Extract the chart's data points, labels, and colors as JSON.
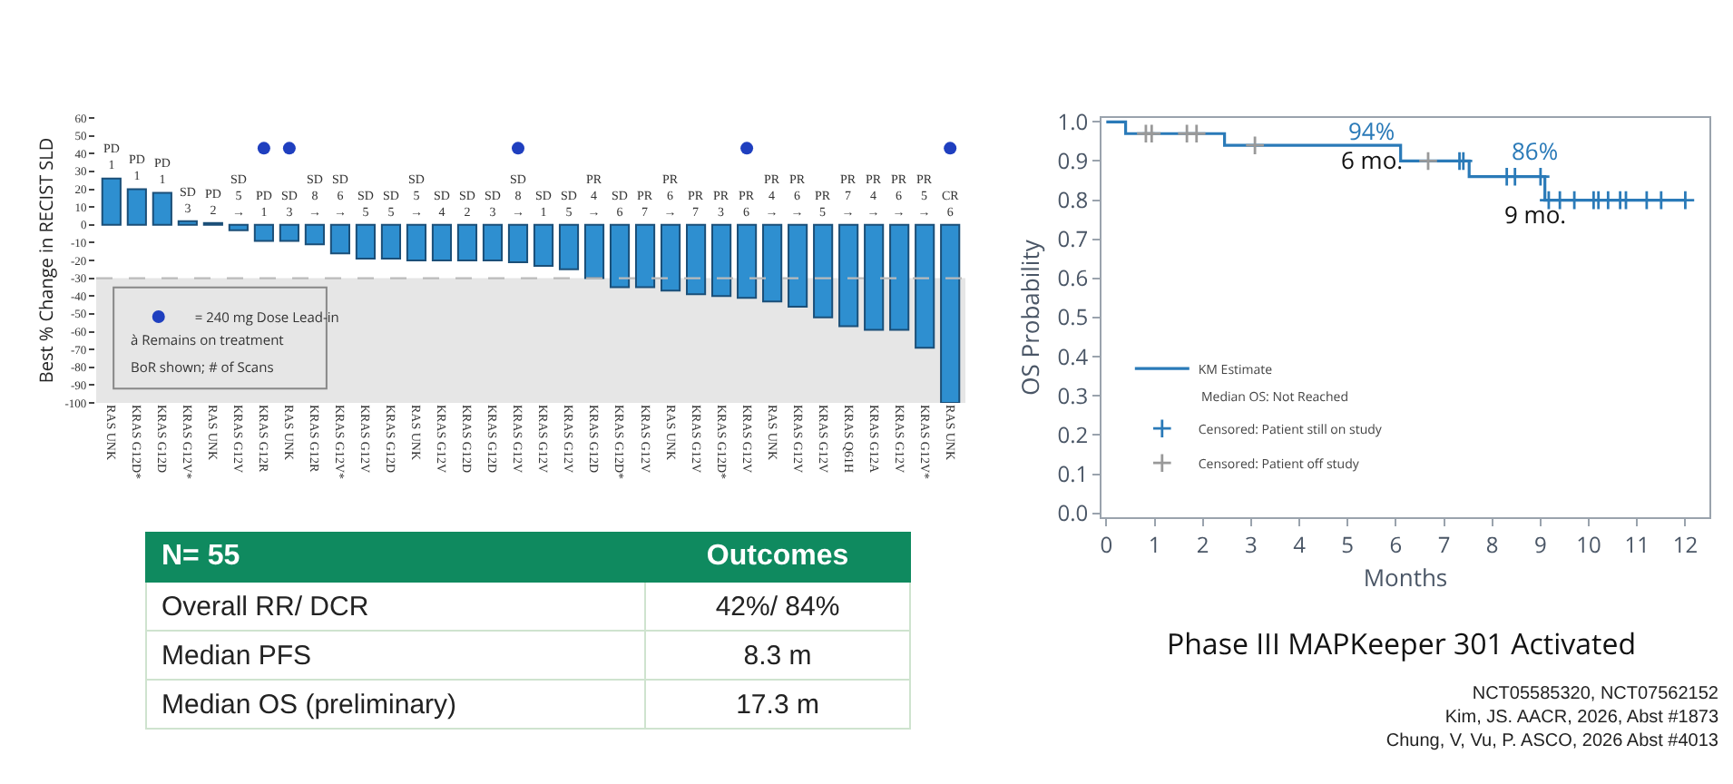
{
  "chart_data": [
    {
      "type": "bar",
      "ylabel": "Best % Change in RECIST SLD",
      "categories": [
        "RAS UNK",
        "KRAS G12D*",
        "KRAS G12D",
        "KRAS G12V*",
        "RAS UNK",
        "KRAS G12V",
        "KRAS G12R",
        "RAS UNK",
        "KRAS G12R",
        "KRAS G12V*",
        "KRAS G12V",
        "KRAS G12D",
        "RAS UNK",
        "KRAS G12V",
        "KRAS G12D",
        "KRAS G12D",
        "KRAS G12V",
        "KRAS G12V",
        "KRAS G12V",
        "KRAS G12D",
        "KRAS G12D*",
        "KRAS G12V",
        "RAS UNK",
        "KRAS G12V",
        "KRAS G12D*",
        "KRAS G12V",
        "RAS UNK",
        "KRAS G12V",
        "KRAS G12V",
        "KRAS Q61H",
        "KRAS G12A",
        "KRAS G12V",
        "KRAS G12V*",
        "RAS UNK"
      ],
      "series": [
        {
          "type": "bar",
          "color": "#2e8fd0",
          "values": [
            26,
            20,
            18,
            2,
            1,
            -3,
            -9,
            -9,
            -11,
            -16,
            -19,
            -19,
            -20,
            -20,
            -20,
            -20,
            -21,
            -23,
            -25,
            -30,
            -35,
            -35,
            -37,
            -39,
            -40,
            -41,
            -43,
            -46,
            -52,
            -57,
            -59,
            -59,
            -69,
            -100
          ],
          "value_labels": [
            "PD\n1",
            "PD\n1",
            "PD\n1",
            "SD\n3",
            "PD\n2",
            "SD\n5\n→",
            "PD\n1",
            "SD\n3",
            "SD\n8\n→",
            "SD\n6\n→",
            "SD\n5",
            "SD\n5",
            "SD\n5\n→",
            "SD\n4",
            "SD\n2",
            "SD\n3",
            "SD\n8\n→",
            "SD\n1",
            "SD\n5",
            "PR\n4\n→",
            "SD\n6",
            "PR\n7",
            "PR\n6\n→",
            "PR\n7",
            "PR\n3",
            "PR\n6",
            "PR\n4\n→",
            "PR\n6\n→",
            "PR\n5",
            "PR\n7\n→",
            "PR\n4\n→",
            "PR\n6\n→",
            "PR\n5\n→",
            "CR\n6"
          ]
        },
        {
          "type": "scatter",
          "name": "= 240 mg Dose Lead-in",
          "color": "#1f3fbf",
          "marker": "circle",
          "values": [
            null,
            null,
            null,
            null,
            null,
            null,
            43,
            43,
            null,
            null,
            null,
            null,
            null,
            null,
            null,
            null,
            43,
            null,
            null,
            null,
            null,
            null,
            null,
            null,
            null,
            43,
            null,
            null,
            null,
            null,
            null,
            null,
            null,
            43
          ]
        }
      ],
      "ylim": [
        -100,
        60
      ],
      "yticks": [
        60,
        50,
        40,
        30,
        20,
        10,
        0,
        -10,
        -20,
        -30,
        -40,
        -50,
        -60,
        -70,
        -80,
        -90,
        -100
      ],
      "ref_lines": [
        {
          "axis": "y",
          "value": -30,
          "line_style": "dashed",
          "color": "#bbbbbb"
        }
      ],
      "bands": [
        {
          "axis": "y",
          "from": -100,
          "to": -30,
          "color": "#e6e6e6"
        }
      ],
      "annotations": [
        "à Remains on treatment",
        "BoR shown; # of Scans"
      ],
      "legend": "bottom left"
    },
    {
      "type": "other",
      "annotations": [
        "N= 55",
        "Outcomes",
        "Overall RR/ DCR",
        "42%/ 84%",
        "Median PFS",
        "8.3 m",
        "Median OS (preliminary)",
        "17.3 m"
      ]
    },
    {
      "type": "step",
      "title": "Phase III MAPKeeper 301 Activated",
      "xlabel": "Months",
      "ylabel": "OS Probability",
      "xlim": [
        -0.1,
        12.5
      ],
      "ylim": [
        -0.01,
        1.01
      ],
      "xticks": [
        0,
        1,
        2,
        3,
        4,
        5,
        6,
        7,
        8,
        9,
        10,
        11,
        12
      ],
      "yticks": [
        {
          "value": 0,
          "label": "0.0"
        },
        {
          "value": 0.1,
          "label": "0.1"
        },
        {
          "value": 0.2,
          "label": "0.2"
        },
        {
          "value": 0.3,
          "label": "0.3"
        },
        {
          "value": 0.4,
          "label": "0.4"
        },
        {
          "value": 0.5,
          "label": "0.5"
        },
        {
          "value": 0.6,
          "label": "0.6"
        },
        {
          "value": 0.7,
          "label": "0.7"
        },
        {
          "value": 0.8,
          "label": "0.8"
        },
        {
          "value": 0.9,
          "label": "0.9"
        },
        {
          "value": 1,
          "label": "1.0"
        }
      ],
      "series": [
        {
          "name": "KM Estimate",
          "color": "#2a7ab8",
          "marker": "none",
          "x": [
            0,
            0.4,
            2.45,
            6.1,
            7.52,
            9.09,
            12
          ],
          "values": [
            1,
            0.97,
            0.94,
            0.9,
            0.86,
            0.8,
            0.8
          ]
        },
        {
          "type": "scatter",
          "name": "Censored: Patient still on study",
          "color": "#2a7ab8",
          "marker": "cross",
          "x": [
            7.32,
            7.4,
            8.3,
            8.47,
            9.0,
            9.17,
            9.4,
            9.7,
            10.1,
            10.2,
            10.4,
            10.65,
            10.77,
            11.2,
            11.5,
            12
          ],
          "values": [
            0.9,
            0.9,
            0.86,
            0.86,
            0.86,
            0.8,
            0.8,
            0.8,
            0.8,
            0.8,
            0.8,
            0.8,
            0.8,
            0.8,
            0.8,
            0.8
          ]
        },
        {
          "type": "scatter",
          "name": "Censored: Patient off study",
          "color": "#999999",
          "marker": "cross",
          "x": [
            0.82,
            0.94,
            1.67,
            1.87,
            3.08,
            6.67
          ],
          "values": [
            0.97,
            0.97,
            0.97,
            0.97,
            0.94,
            0.9
          ]
        }
      ],
      "annotations": [
        "94%",
        "6 mo.",
        "86%",
        "9 mo.",
        "Median OS: Not Reached"
      ],
      "legend": "bottom left"
    },
    {
      "type": "other",
      "annotations": [
        "NCT05585320, NCT07562152",
        "Kim, JS. AACR, 2026, Abst #1873",
        "Chung, V, Vu, P. ASCO, 2026 Abst #4013"
      ]
    }
  ]
}
